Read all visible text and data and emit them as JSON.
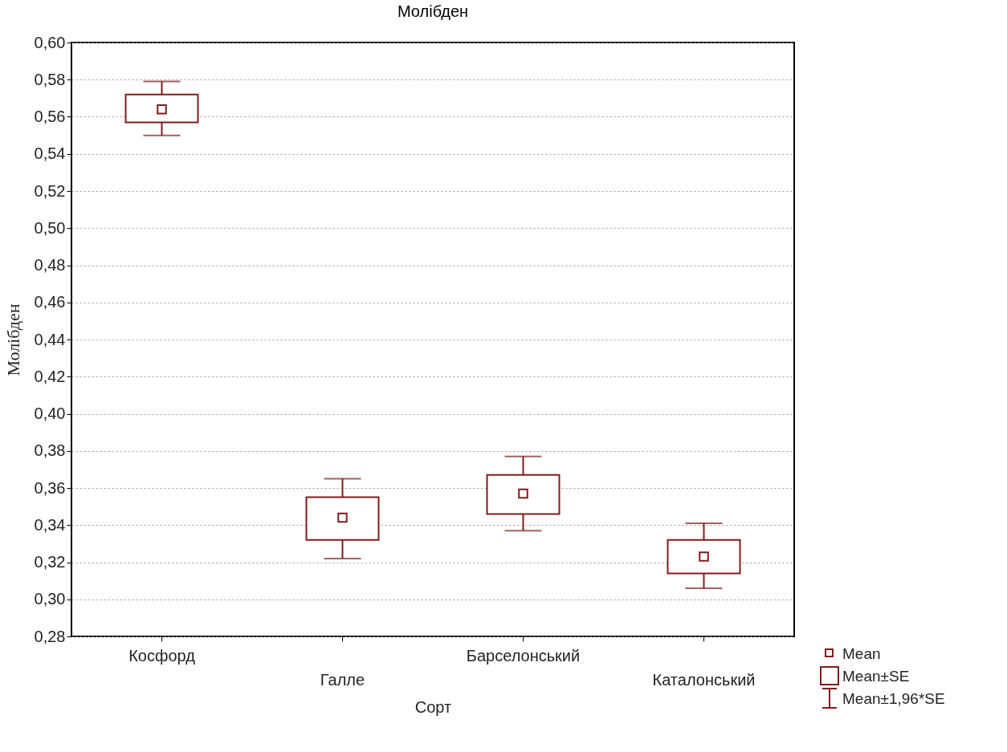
{
  "chart_data": {
    "type": "box",
    "title": "Молібден",
    "xlabel": "Сорт",
    "ylabel": "Молібден",
    "categories": [
      "Косфорд",
      "Галле",
      "Барселонський",
      "Каталонський"
    ],
    "series": [
      {
        "color": "#7f1d1d",
        "boxes": [
          {
            "low": 0.55,
            "q1": 0.557,
            "median": 0.564,
            "q3": 0.572,
            "high": 0.579
          },
          {
            "low": 0.322,
            "q1": 0.332,
            "median": 0.344,
            "q3": 0.355,
            "high": 0.365
          },
          {
            "low": 0.337,
            "q1": 0.346,
            "median": 0.357,
            "q3": 0.367,
            "high": 0.377
          },
          {
            "low": 0.306,
            "q1": 0.314,
            "median": 0.323,
            "q3": 0.332,
            "high": 0.341
          }
        ]
      }
    ],
    "ylim": [
      0.28,
      0.6
    ],
    "yticks": [
      {
        "value": 0.28,
        "label": "0,28"
      },
      {
        "value": 0.3,
        "label": "0,30"
      },
      {
        "value": 0.32,
        "label": "0,32"
      },
      {
        "value": 0.34,
        "label": "0,34"
      },
      {
        "value": 0.36,
        "label": "0,36"
      },
      {
        "value": 0.38,
        "label": "0,38"
      },
      {
        "value": 0.4,
        "label": "0,40"
      },
      {
        "value": 0.42,
        "label": "0,42"
      },
      {
        "value": 0.44,
        "label": "0,44"
      },
      {
        "value": 0.46,
        "label": "0,46"
      },
      {
        "value": 0.48,
        "label": "0,48"
      },
      {
        "value": 0.5,
        "label": "0,50"
      },
      {
        "value": 0.52,
        "label": "0,52"
      },
      {
        "value": 0.54,
        "label": "0,54"
      },
      {
        "value": 0.56,
        "label": "0,56"
      },
      {
        "value": 0.58,
        "label": "0,58"
      },
      {
        "value": 0.6,
        "label": "0,60"
      }
    ],
    "grid": "y",
    "annotations": [
      "Mean",
      "Mean±SE",
      "Mean±1,96*SE"
    ]
  }
}
